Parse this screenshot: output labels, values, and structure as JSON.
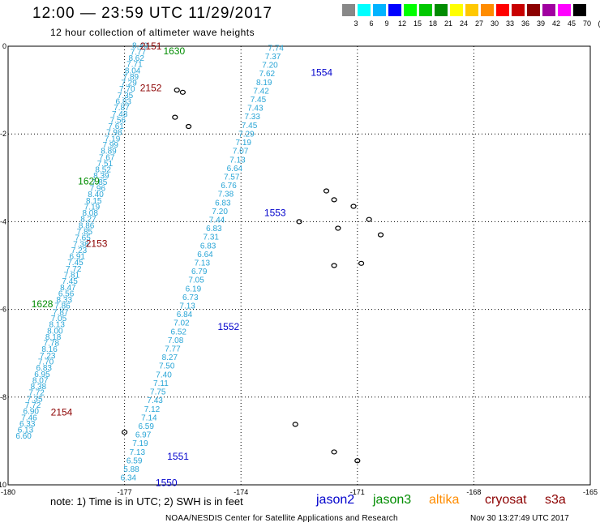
{
  "header": {
    "title": "12:00 — 23:59 UTC 11/29/2017",
    "subtitle": "12 hour collection of altimeter wave heights"
  },
  "legend": {
    "colors": [
      "#888888",
      "#00ffff",
      "#00b4ff",
      "#0000ff",
      "#00ff00",
      "#00c800",
      "#008c00",
      "#ffff00",
      "#ffc800",
      "#ff8c00",
      "#ff0000",
      "#c80000",
      "#8c0000",
      "#a000a0",
      "#ff00ff",
      "#000000"
    ],
    "labels": [
      "3",
      "6",
      "9",
      "12",
      "15",
      "18",
      "21",
      "24",
      "27",
      "30",
      "33",
      "36",
      "39",
      "42",
      "45",
      "70",
      "(ft)"
    ]
  },
  "chart_data": {
    "type": "map",
    "xlim": [
      -180,
      -165
    ],
    "ylim": [
      -10,
      0
    ],
    "xticks": [
      "-180",
      "-177",
      "-174",
      "-171",
      "-168",
      "-165"
    ],
    "yticks": [
      "0",
      "-2",
      "-4",
      "-6",
      "-8",
      "-10"
    ],
    "grid": true,
    "value_color": "#29a5d6",
    "tracks": [
      {
        "start_lon": -176.6,
        "start_lat": -0.05,
        "end_lon": -179.6,
        "end_lat": -8.95,
        "values": [
          "8.40",
          "7.77",
          "8.62",
          "7.71",
          "8.04",
          "7.89",
          "7.29",
          "7.70",
          "7.35",
          "6.83",
          "7.87",
          "7.48",
          "7.56",
          "7.61",
          "7.98",
          "7.19",
          "7.99",
          "8.89",
          "7.67",
          "7.51",
          "8.52",
          "8.39",
          "7.85",
          "7.96",
          "8.40",
          "8.15",
          "7.19",
          "8.08",
          "8.27",
          "8.86",
          "7.85",
          "7.65",
          "7.38",
          "7.23",
          "6.91",
          "7.45",
          "7.72",
          "7.81",
          "7.45",
          "8.47",
          "6.56",
          "8.33",
          "7.86",
          "7.87",
          "7.05",
          "8.13",
          "8.00",
          "8.18",
          "7.78",
          "8.16",
          "7.23",
          "7.70",
          "6.83",
          "6.95",
          "8.07",
          "8.38",
          "7.72",
          "7.35",
          "7.72",
          "6.90",
          "7.46",
          "6.33",
          "6.13",
          "6.60"
        ]
      },
      {
        "start_lon": -173.1,
        "start_lat": -0.1,
        "end_lon": -176.9,
        "end_lat": -9.9,
        "values": [
          "7.74",
          "7.37",
          "7.20",
          "7.62",
          "8.19",
          "7.42",
          "7.45",
          "7.43",
          "7.33",
          "7.45",
          "7.29",
          "7.19",
          "7.07",
          "7.13",
          "6.64",
          "7.57",
          "6.76",
          "7.38",
          "6.83",
          "7.20",
          "7.44",
          "6.83",
          "7.31",
          "6.83",
          "6.64",
          "7.13",
          "6.79",
          "7.05",
          "6.19",
          "6.73",
          "7.13",
          "6.84",
          "7.02",
          "6.52",
          "7.08",
          "7.77",
          "8.27",
          "7.50",
          "7.40",
          "7.11",
          "7.75",
          "7.43",
          "7.12",
          "7.14",
          "6.59",
          "6.97",
          "7.19",
          "7.13",
          "6.59",
          "5.88",
          "6.34"
        ]
      }
    ],
    "passes": [
      {
        "label": "2151",
        "lon": -176.6,
        "lat": 0.0,
        "sat": "cryosat"
      },
      {
        "label": "1630",
        "lon": -176.0,
        "lat": -0.11,
        "sat": "jason3"
      },
      {
        "label": "2152",
        "lon": -176.6,
        "lat": -0.95,
        "sat": "cryosat"
      },
      {
        "label": "1629",
        "lon": -178.2,
        "lat": -3.08,
        "sat": "jason3"
      },
      {
        "label": "2153",
        "lon": -178.0,
        "lat": -4.5,
        "sat": "cryosat"
      },
      {
        "label": "1628",
        "lon": -179.4,
        "lat": -5.88,
        "sat": "jason3"
      },
      {
        "label": "2154",
        "lon": -178.9,
        "lat": -8.35,
        "sat": "cryosat"
      },
      {
        "label": "1554",
        "lon": -172.2,
        "lat": -0.6,
        "sat": "jason2"
      },
      {
        "label": "1553",
        "lon": -173.4,
        "lat": -3.8,
        "sat": "jason2"
      },
      {
        "label": "1552",
        "lon": -174.6,
        "lat": -6.4,
        "sat": "jason2"
      },
      {
        "label": "1551",
        "lon": -175.9,
        "lat": -9.35,
        "sat": "jason2"
      },
      {
        "label": "1550",
        "lon": -176.2,
        "lat": -9.95,
        "sat": "jason2"
      }
    ],
    "islands": [
      [
        -175.65,
        -1.0
      ],
      [
        -175.5,
        -1.05
      ],
      [
        -175.7,
        -1.62
      ],
      [
        -175.35,
        -1.83
      ],
      [
        -172.5,
        -4.0
      ],
      [
        -171.8,
        -3.3
      ],
      [
        -171.6,
        -3.5
      ],
      [
        -171.1,
        -3.65
      ],
      [
        -171.5,
        -4.15
      ],
      [
        -170.7,
        -3.95
      ],
      [
        -170.4,
        -4.3
      ],
      [
        -171.6,
        -5.0
      ],
      [
        -170.9,
        -4.95
      ],
      [
        -172.6,
        -8.62
      ],
      [
        -171.6,
        -9.25
      ],
      [
        -171.0,
        -9.45
      ],
      [
        -177.0,
        -8.8
      ]
    ]
  },
  "sat_colors": {
    "jason2": "#0000cc",
    "jason3": "#008c00",
    "altika": "#ff8c00",
    "cryosat": "#8c0000",
    "s3a": "#8c0000"
  },
  "footer": {
    "note": "note:  1) Time is in UTC;  2) SWH is in feet",
    "sats": [
      "jason2",
      "jason3",
      "altika",
      "cryosat",
      "s3a"
    ],
    "credit": "NOAA/NESDIS Center for Satellite Applications and Research",
    "timestamp": "Nov 30 13:27:49 UTC 2017"
  }
}
